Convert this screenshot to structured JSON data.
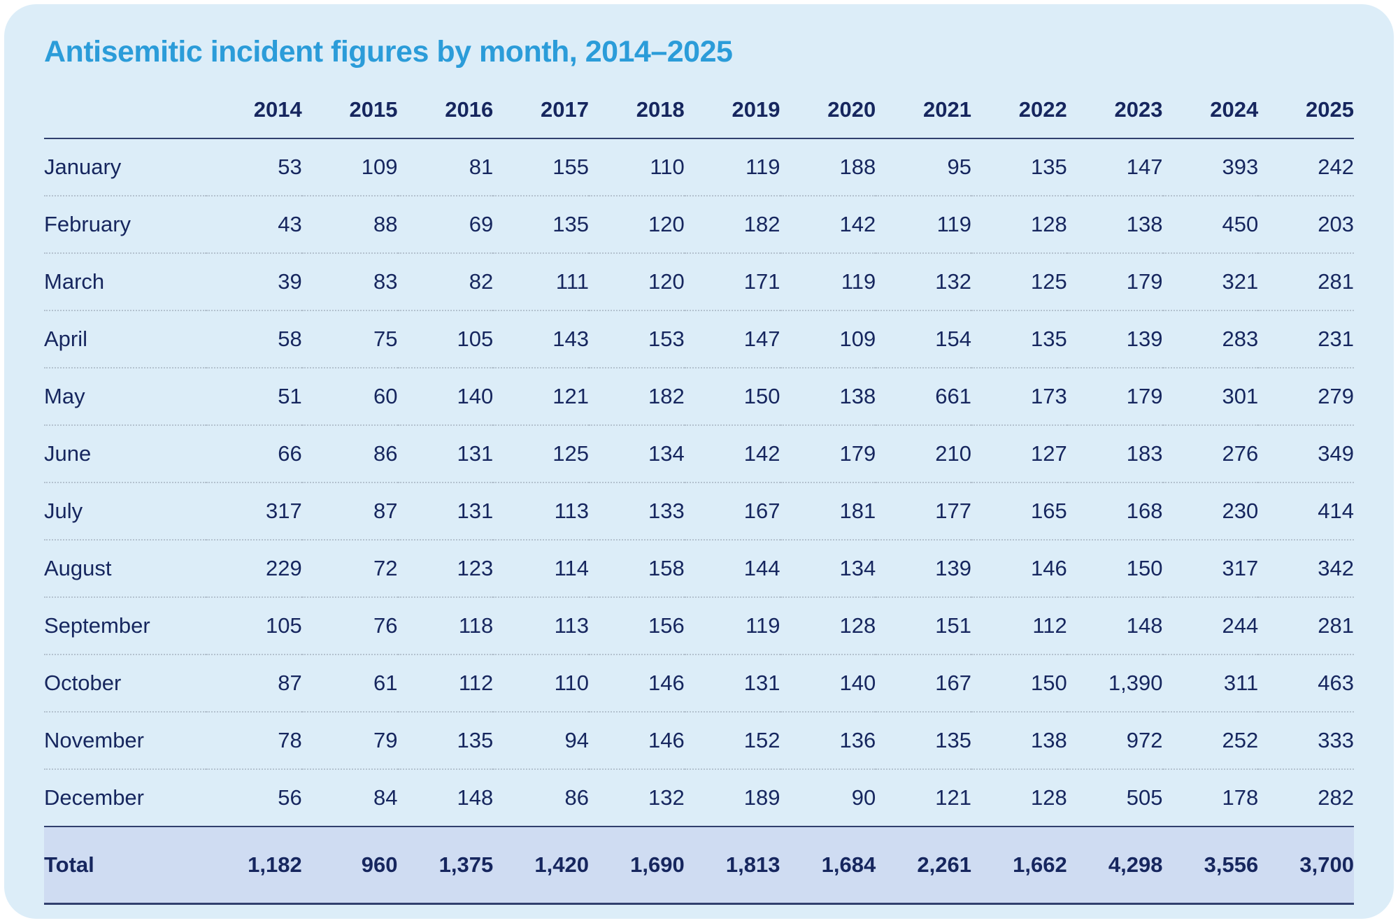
{
  "title": "Antisemitic incident figures by month, 2014–2025",
  "colors": {
    "card_background": "#dcedf8",
    "title_blue": "#2b9cd9",
    "text_navy": "#16265e",
    "total_row_background": "#cfdcf2",
    "rule_navy": "#31406e",
    "dotted_separator": "#b4c2cf"
  },
  "chart_data": {
    "type": "table",
    "title": "Antisemitic incident figures by month, 2014–2025",
    "columns": [
      "2014",
      "2015",
      "2016",
      "2017",
      "2018",
      "2019",
      "2020",
      "2021",
      "2022",
      "2023",
      "2024",
      "2025"
    ],
    "rows": [
      {
        "label": "January",
        "values": [
          "53",
          "109",
          "81",
          "155",
          "110",
          "119",
          "188",
          "95",
          "135",
          "147",
          "393",
          "242"
        ]
      },
      {
        "label": "February",
        "values": [
          "43",
          "88",
          "69",
          "135",
          "120",
          "182",
          "142",
          "119",
          "128",
          "138",
          "450",
          "203"
        ]
      },
      {
        "label": "March",
        "values": [
          "39",
          "83",
          "82",
          "111",
          "120",
          "171",
          "119",
          "132",
          "125",
          "179",
          "321",
          "281"
        ]
      },
      {
        "label": "April",
        "values": [
          "58",
          "75",
          "105",
          "143",
          "153",
          "147",
          "109",
          "154",
          "135",
          "139",
          "283",
          "231"
        ]
      },
      {
        "label": "May",
        "values": [
          "51",
          "60",
          "140",
          "121",
          "182",
          "150",
          "138",
          "661",
          "173",
          "179",
          "301",
          "279"
        ]
      },
      {
        "label": "June",
        "values": [
          "66",
          "86",
          "131",
          "125",
          "134",
          "142",
          "179",
          "210",
          "127",
          "183",
          "276",
          "349"
        ]
      },
      {
        "label": "July",
        "values": [
          "317",
          "87",
          "131",
          "113",
          "133",
          "167",
          "181",
          "177",
          "165",
          "168",
          "230",
          "414"
        ]
      },
      {
        "label": "August",
        "values": [
          "229",
          "72",
          "123",
          "114",
          "158",
          "144",
          "134",
          "139",
          "146",
          "150",
          "317",
          "342"
        ]
      },
      {
        "label": "September",
        "values": [
          "105",
          "76",
          "118",
          "113",
          "156",
          "119",
          "128",
          "151",
          "112",
          "148",
          "244",
          "281"
        ]
      },
      {
        "label": "October",
        "values": [
          "87",
          "61",
          "112",
          "110",
          "146",
          "131",
          "140",
          "167",
          "150",
          "1,390",
          "311",
          "463"
        ]
      },
      {
        "label": "November",
        "values": [
          "78",
          "79",
          "135",
          "94",
          "146",
          "152",
          "136",
          "135",
          "138",
          "972",
          "252",
          "333"
        ]
      },
      {
        "label": "December",
        "values": [
          "56",
          "84",
          "148",
          "86",
          "132",
          "189",
          "90",
          "121",
          "128",
          "505",
          "178",
          "282"
        ]
      }
    ],
    "total": {
      "label": "Total",
      "values": [
        "1,182",
        "960",
        "1,375",
        "1,420",
        "1,690",
        "1,813",
        "1,684",
        "2,261",
        "1,662",
        "4,298",
        "3,556",
        "3,700"
      ]
    }
  }
}
